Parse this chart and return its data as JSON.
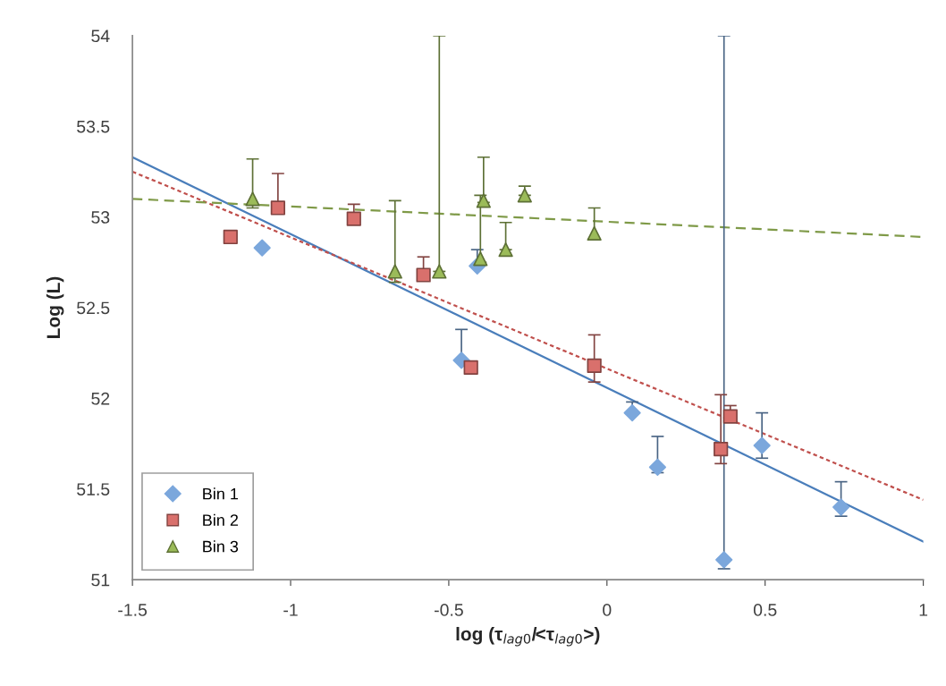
{
  "chart_data": {
    "type": "scatter",
    "xlabel": "log (τ$_{lag0}$/<τ$_{lag0}$>)",
    "ylabel": "Log (L)",
    "xlim": [
      -1.5,
      1
    ],
    "xticks": [
      -1.5,
      -1,
      -0.5,
      0,
      0.5,
      1
    ],
    "ylim": [
      51,
      54
    ],
    "yticks": [
      51,
      51.5,
      52,
      52.5,
      53,
      53.5,
      54
    ],
    "grid": false,
    "legend": "bottom left",
    "series": [
      {
        "name": "Bin 1",
        "color": "#7ba7dc",
        "marker": "diamond",
        "x": [
          -1.09,
          -0.46,
          -0.41,
          0.08,
          0.16,
          0.37,
          0.49,
          0.74
        ],
        "values": [
          52.83,
          52.21,
          52.73,
          51.92,
          51.62,
          51.11,
          51.74,
          51.4
        ],
        "errors": [
          null,
          [
            52.21,
            52.38
          ],
          [
            52.73,
            52.82
          ],
          [
            51.92,
            51.98
          ],
          [
            51.59,
            51.79
          ],
          [
            51.06,
            54
          ],
          [
            51.67,
            51.92
          ],
          [
            51.35,
            51.54
          ]
        ]
      },
      {
        "name": "Bin 2",
        "color": "#d9706c",
        "marker": "square",
        "x": [
          -1.19,
          -1.04,
          -0.8,
          -0.58,
          -0.43,
          -0.04,
          0.36,
          0.39
        ],
        "values": [
          52.89,
          53.05,
          52.99,
          52.68,
          52.17,
          52.18,
          51.72,
          51.9
        ],
        "errors": [
          null,
          [
            53.05,
            53.24
          ],
          [
            52.99,
            53.07
          ],
          [
            52.68,
            52.78
          ],
          null,
          [
            52.09,
            52.35
          ],
          [
            51.64,
            52.02
          ],
          [
            51.9,
            51.96
          ]
        ]
      },
      {
        "name": "Bin 3",
        "color": "#9bbb59",
        "marker": "triangle",
        "x": [
          -1.12,
          -0.67,
          -0.53,
          -0.39,
          -0.4,
          -0.32,
          -0.26,
          -0.04
        ],
        "values": [
          53.1,
          52.7,
          52.7,
          53.09,
          52.77,
          52.82,
          53.12,
          52.91
        ],
        "errors": [
          [
            53.05,
            53.32
          ],
          [
            52.64,
            53.09
          ],
          [
            52.7,
            54
          ],
          [
            53.08,
            53.33
          ],
          [
            52.75,
            53.12
          ],
          [
            52.82,
            52.97
          ],
          [
            53.12,
            53.17
          ],
          [
            52.88,
            53.05
          ]
        ]
      },
      {
        "type": "line",
        "color": "#4a7ebb",
        "line_style": "solid",
        "x": [
          -1.5,
          1
        ],
        "values": [
          53.33,
          51.21
        ]
      },
      {
        "type": "line",
        "color": "#c0504d",
        "line_style": "dotted",
        "x": [
          -1.5,
          1
        ],
        "values": [
          53.25,
          51.44
        ]
      },
      {
        "type": "line",
        "color": "#7f9a48",
        "line_style": "dashed",
        "x": [
          -1.5,
          1
        ],
        "values": [
          53.1,
          52.89
        ]
      }
    ]
  }
}
